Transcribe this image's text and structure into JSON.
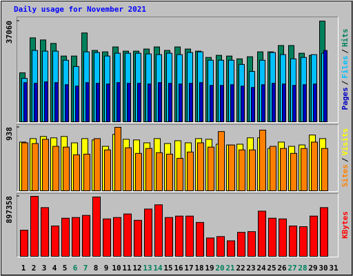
{
  "chart_data": [
    {
      "type": "bar",
      "title": "Daily usage for November 2021",
      "title_color": "#0000ff",
      "ylim": [
        0,
        37060
      ],
      "yticks": [
        37060
      ],
      "legend_separator": "/",
      "series": [
        {
          "name": "Hits",
          "color": "#00805c",
          "values": [
            18148,
            30928,
            30161,
            28883,
            24282,
            24282,
            32717,
            26327,
            25816,
            27605,
            26071,
            26071,
            26838,
            27605,
            26327,
            27605,
            26838,
            26071,
            23771,
            24538,
            24282,
            23260,
            24026,
            25816,
            25816,
            28116,
            28116,
            25304,
            24538,
            37060,
            null
          ]
        },
        {
          "name": "Files",
          "color": "#00c0ff",
          "values": [
            16103,
            26327,
            26071,
            26071,
            22748,
            20448,
            25816,
            25560,
            24282,
            25304,
            25304,
            25304,
            25049,
            24793,
            25304,
            24793,
            25560,
            25816,
            22748,
            22748,
            22748,
            21215,
            18659,
            22748,
            25560,
            24793,
            23260,
            23771,
            24793,
            25304,
            null
          ]
        },
        {
          "name": "Pages",
          "color": "#0000c0",
          "values": [
            14569,
            14313,
            14824,
            14569,
            13802,
            13291,
            14569,
            14313,
            14058,
            14569,
            14313,
            14313,
            14058,
            14569,
            14313,
            14058,
            14313,
            14569,
            13546,
            13546,
            13802,
            13291,
            12780,
            13802,
            14313,
            14058,
            13546,
            13802,
            14058,
            26327,
            null
          ]
        }
      ]
    },
    {
      "type": "bar",
      "ylim": [
        0,
        938
      ],
      "yticks": [
        938
      ],
      "legend_separator": "/",
      "series": [
        {
          "name": "Visits",
          "color": "#ffff00",
          "values": [
            722,
            773,
            804,
            784,
            804,
            711,
            773,
            753,
            660,
            835,
            763,
            753,
            711,
            773,
            701,
            742,
            711,
            773,
            763,
            691,
            680,
            691,
            784,
            784,
            629,
            722,
            660,
            680,
            825,
            773,
            null
          ]
        },
        {
          "name": "Sites",
          "color": "#ff8000",
          "values": [
            711,
            701,
            763,
            660,
            649,
            536,
            546,
            773,
            608,
            938,
            639,
            557,
            629,
            567,
            546,
            485,
            577,
            711,
            649,
            876,
            680,
            608,
            608,
            897,
            660,
            629,
            557,
            629,
            722,
            629,
            null
          ]
        }
      ]
    },
    {
      "type": "bar",
      "ylim": [
        0,
        897358
      ],
      "yticks": [
        897358
      ],
      "series": [
        {
          "name": "KBytes",
          "color": "#ff0000",
          "values": [
            396500,
            897358,
            730400,
            459100,
            573900,
            584300,
            615600,
            886900,
            563400,
            584300,
            636500,
            542600,
            709500,
            772100,
            584300,
            605200,
            605200,
            511300,
            281700,
            302600,
            240000,
            365200,
            375600,
            678200,
            573900,
            563400,
            459100,
            448700,
            605200,
            730400,
            null
          ]
        }
      ],
      "categories": [
        "1",
        "2",
        "3",
        "4",
        "5",
        "6",
        "7",
        "8",
        "9",
        "10",
        "11",
        "12",
        "13",
        "14",
        "15",
        "16",
        "17",
        "18",
        "19",
        "20",
        "21",
        "22",
        "23",
        "24",
        "25",
        "26",
        "27",
        "28",
        "29",
        "30",
        "31"
      ],
      "label_colors": [
        "#000000",
        "#000000",
        "#000000",
        "#000000",
        "#000000",
        "#00805c",
        "#00805c",
        "#000000",
        "#000000",
        "#000000",
        "#000000",
        "#000000",
        "#00805c",
        "#00805c",
        "#000000",
        "#000000",
        "#000000",
        "#000000",
        "#000000",
        "#00805c",
        "#00805c",
        "#000000",
        "#000000",
        "#000000",
        "#000000",
        "#000000",
        "#00805c",
        "#00805c",
        "#000000",
        "#000000",
        "#000000"
      ]
    }
  ]
}
